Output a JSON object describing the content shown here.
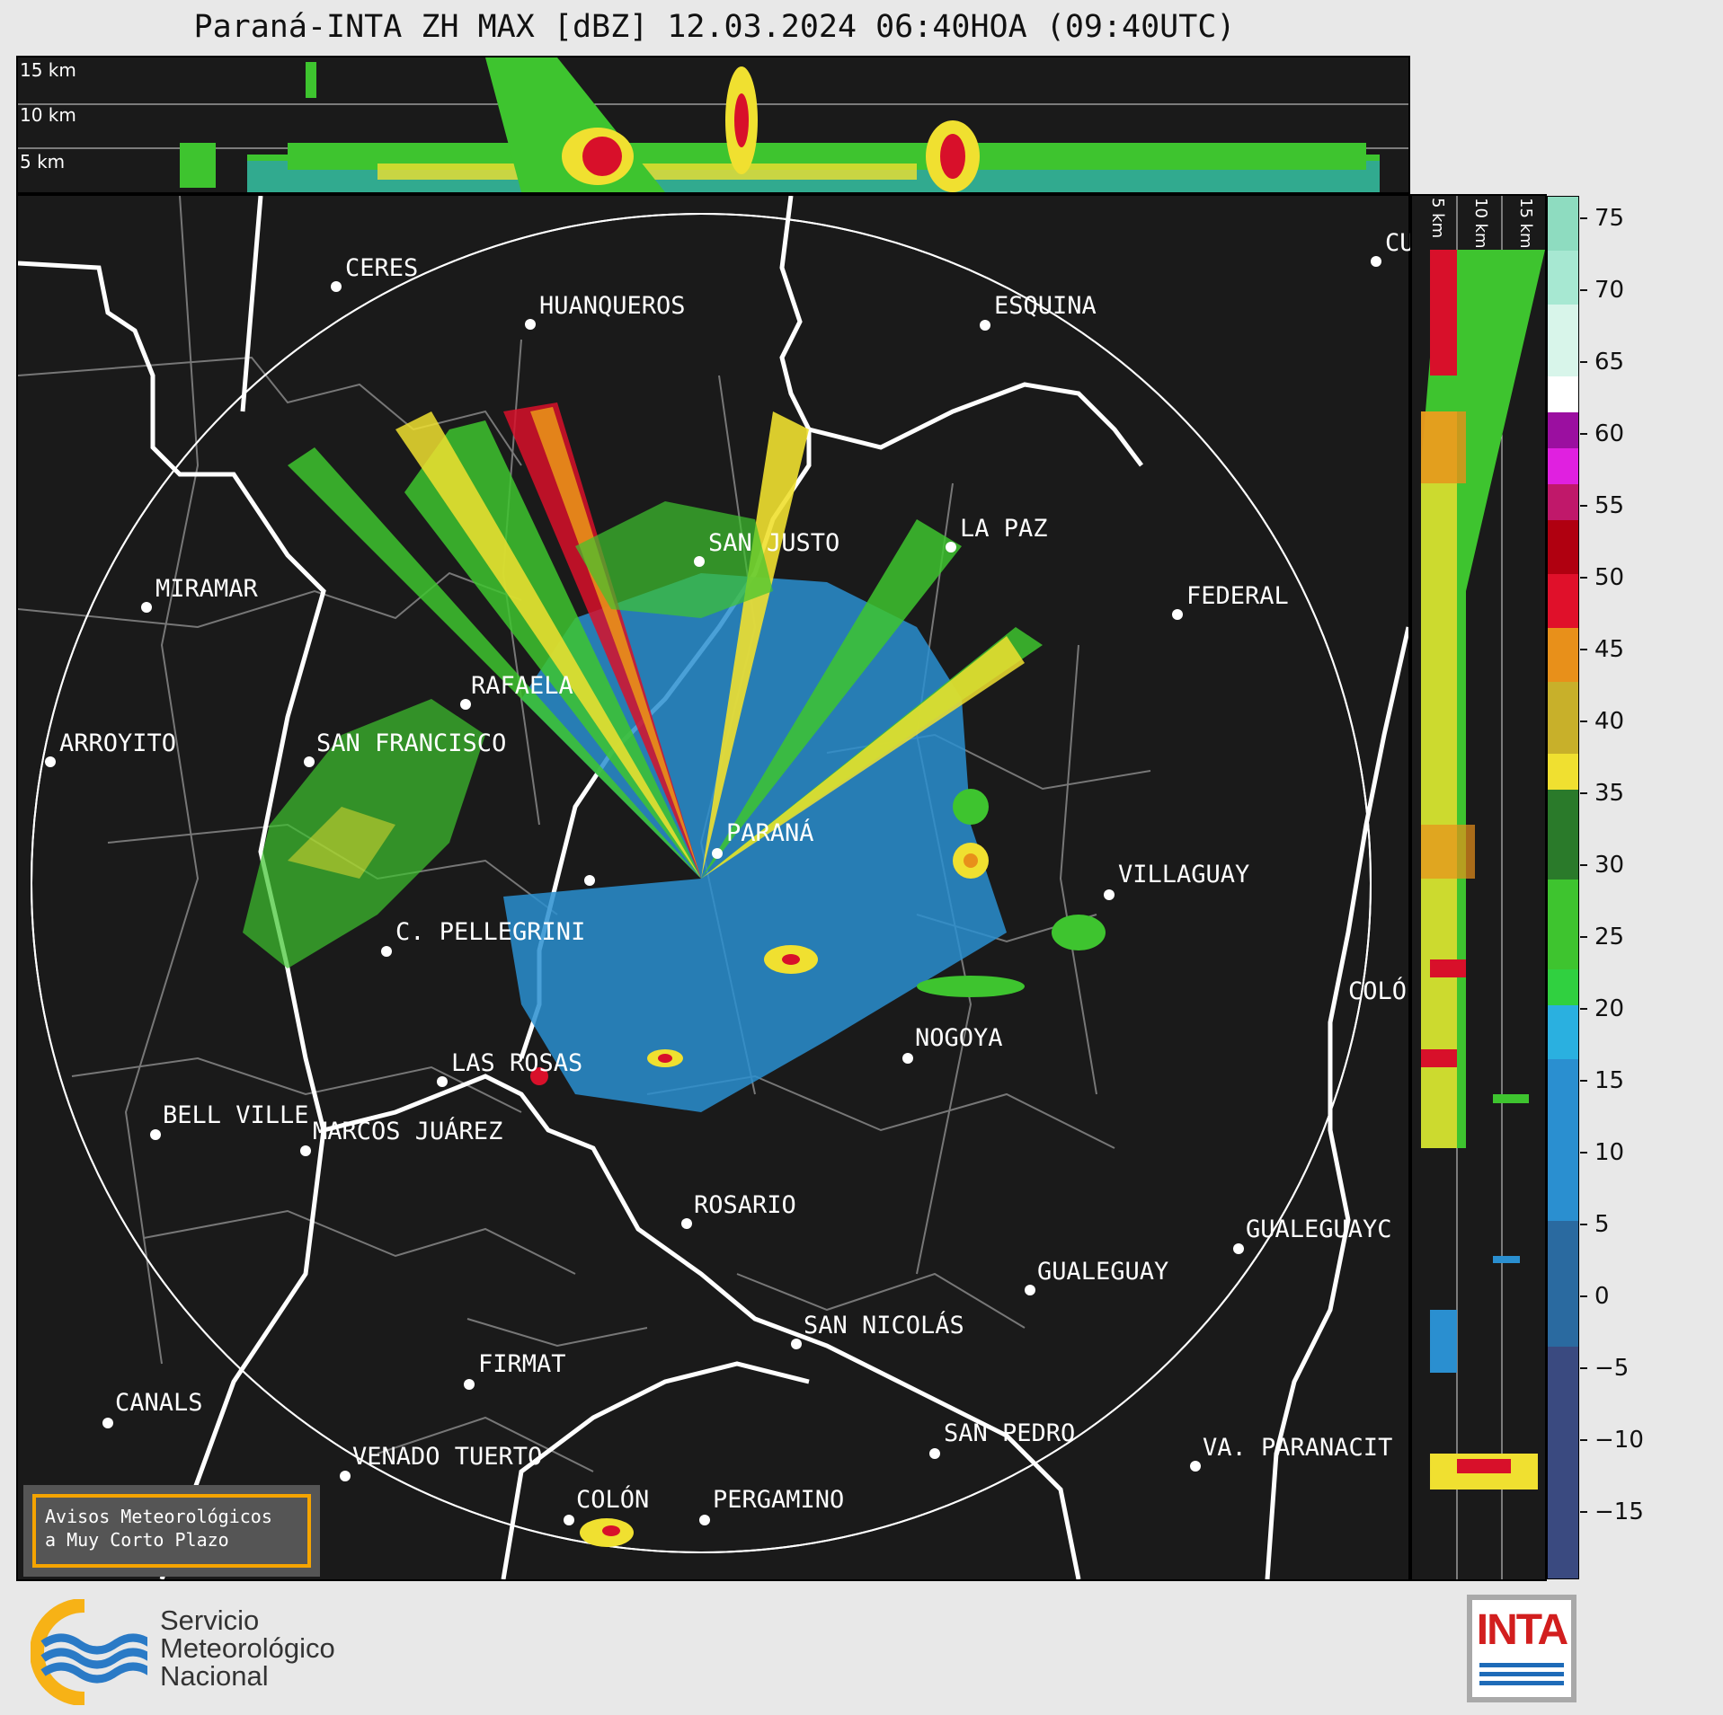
{
  "title": "Paraná-INTA ZH MAX [dBZ] 12.03.2024 06:40HOA (09:40UTC)",
  "top_panel": {
    "altitude_labels": [
      "15 km",
      "10 km",
      "5 km"
    ]
  },
  "right_panel": {
    "altitude_labels": [
      "5 km",
      "10 km",
      "15 km"
    ]
  },
  "colorbar": {
    "ticks": [
      "75",
      "70",
      "65",
      "60",
      "55",
      "50",
      "45",
      "40",
      "35",
      "30",
      "25",
      "20",
      "15",
      "10",
      "5",
      "0",
      "−5",
      "−10",
      "−15"
    ],
    "range_dbz": [
      -20,
      77
    ],
    "colors": {
      "weak": "#2a8fd0",
      "moderate": "#3ec42f",
      "strong": "#f0e030",
      "heavy": "#e8901a",
      "intense": "#d8102a",
      "extreme": "#e020e0",
      "max": "#ffffff"
    }
  },
  "cities": [
    {
      "name": "CERES"
    },
    {
      "name": "HUANQUEROS"
    },
    {
      "name": "ESQUINA"
    },
    {
      "name": "CU"
    },
    {
      "name": "MIRAMAR"
    },
    {
      "name": "SAN JUSTO"
    },
    {
      "name": "LA PAZ"
    },
    {
      "name": "FEDERAL"
    },
    {
      "name": "RAFAELA"
    },
    {
      "name": "ARROYITO"
    },
    {
      "name": "SAN FRANCISCO"
    },
    {
      "name": "PARANÁ"
    },
    {
      "name": "VILLAGUAY"
    },
    {
      "name": "C. PELLEGRINI"
    },
    {
      "name": "COLÓ"
    },
    {
      "name": "NOGOYA"
    },
    {
      "name": "LAS ROSAS"
    },
    {
      "name": "BELL VILLE"
    },
    {
      "name": "MARCOS JUÁREZ"
    },
    {
      "name": "ROSARIO"
    },
    {
      "name": "GUALEGUAYC"
    },
    {
      "name": "GUALEGUAY"
    },
    {
      "name": "SAN NICOLÁS"
    },
    {
      "name": "FIRMAT"
    },
    {
      "name": "CANALS"
    },
    {
      "name": "SAN PEDRO"
    },
    {
      "name": "VA. PARANACIT"
    },
    {
      "name": "VENADO TUERTO"
    },
    {
      "name": "COLÓN"
    },
    {
      "name": "PERGAMINO"
    }
  ],
  "notice": {
    "line1": "Avisos Meteorológicos",
    "line2": "a Muy Corto Plazo"
  },
  "smn": {
    "line1": "Servicio",
    "line2": "Meteorológico",
    "line3": "Nacional"
  },
  "inta": {
    "word": "INTA"
  }
}
